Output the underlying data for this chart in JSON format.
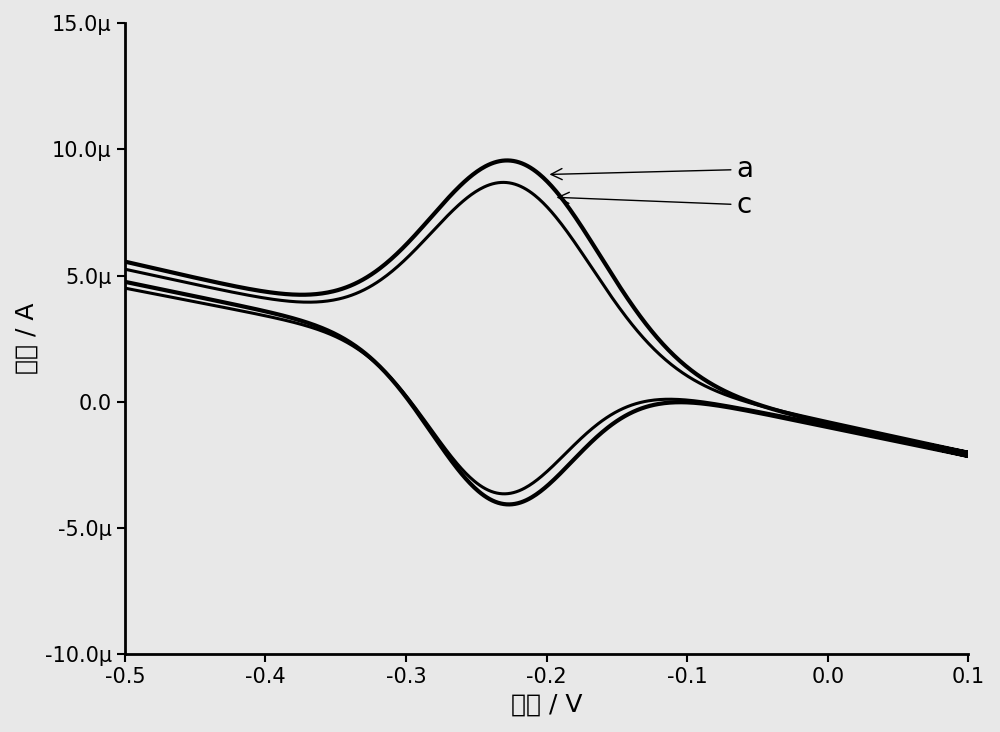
{
  "xlabel": "电位 / V",
  "ylabel": "电流 / A",
  "xlim": [
    -0.5,
    0.1
  ],
  "ylim": [
    -1e-05,
    1.5e-05
  ],
  "xticks": [
    -0.5,
    -0.4,
    -0.3,
    -0.2,
    -0.1,
    0.0,
    0.1
  ],
  "yticks": [
    -1e-05,
    -5e-06,
    0.0,
    5e-06,
    1e-05,
    1.5e-05
  ],
  "ytick_labels": [
    "-10.0μ",
    "-5.0μ",
    "0.0",
    "5.0μ",
    "10.0μ",
    "15.0μ"
  ],
  "xtick_labels": [
    "-0.5",
    "-0.4",
    "-0.3",
    "-0.2",
    "-0.1",
    "0.0",
    "0.1"
  ],
  "line_color": "#000000",
  "background_color": "#e8e8e8",
  "label_a": "a",
  "label_c": "c",
  "xlabel_fontsize": 18,
  "ylabel_fontsize": 18,
  "tick_fontsize": 15,
  "annotation_fontsize": 20,
  "linewidth_a": 3.0,
  "linewidth_c": 2.2
}
